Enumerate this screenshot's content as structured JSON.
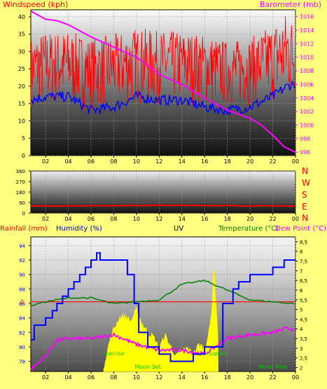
{
  "header": {
    "windspeed_label": "Windspeed (kph)",
    "barometer_label": "Barometer (mb)"
  },
  "panel_labels": {
    "rainfall": "Rainfall (mm)",
    "humidity": "Humidity (%)",
    "uv": "UV",
    "temperature": "Temperature (°C)",
    "dewpoint": "Dew Point (°C)"
  },
  "compass_labels": [
    "N",
    "W",
    "S",
    "E",
    "N"
  ],
  "colors": {
    "background": "#ffff80",
    "wind_gust": "#ff0000",
    "wind_avg": "#0000ff",
    "barometer": "#ff00ff",
    "wind_direction": "#ff0000",
    "humidity": "#0000ff",
    "temperature": "#008000",
    "dewpoint": "#ff00ff",
    "uv": "#ffff00",
    "rainfall": "#ff0000",
    "sun_moon_text": "#00cc00"
  },
  "chart_data": [
    {
      "type": "line",
      "x_tick_labels": [
        "02",
        "04",
        "06",
        "08",
        "10",
        "12",
        "14",
        "16",
        "18",
        "20",
        "22",
        "00"
      ],
      "y_left_ticks": [
        "0",
        "5",
        "10",
        "15",
        "20",
        "25",
        "30",
        "35",
        "40"
      ],
      "y_right_ticks": [
        "996",
        "998",
        "1000",
        "1002",
        "1004",
        "1006",
        "1008",
        "1010",
        "1012",
        "1014",
        "1016"
      ],
      "ylim_left": [
        0,
        42
      ],
      "ylim_right": [
        995.5,
        1017
      ],
      "x_range_hours": [
        0.7,
        24
      ],
      "series": [
        {
          "axis": "left",
          "style": "dense-noisy",
          "x": [
            0.7,
            2,
            4,
            6,
            8,
            10,
            12,
            14,
            16,
            18,
            20,
            22,
            23.3,
            24
          ],
          "low": [
            14,
            14,
            14,
            13,
            14,
            14,
            15,
            15,
            14,
            14,
            14,
            15,
            15,
            16
          ],
          "high": [
            34,
            36,
            36,
            34,
            35,
            37,
            36,
            36,
            35,
            33,
            34,
            38,
            42,
            38
          ]
        },
        {
          "axis": "left",
          "style": "noisy",
          "x": [
            0.7,
            2,
            4,
            6,
            8,
            10,
            12,
            14,
            16,
            18,
            20,
            22,
            23.3,
            24
          ],
          "values": [
            16,
            17,
            17,
            13,
            14,
            17,
            16,
            16,
            14,
            13,
            14,
            17,
            20,
            21
          ]
        },
        {
          "axis": "right",
          "x": [
            0.7,
            2,
            3,
            4,
            6,
            8,
            10,
            12,
            14,
            16,
            18,
            20,
            21,
            22,
            23,
            24
          ],
          "values": [
            1016.8,
            1015.6,
            1015.4,
            1014.8,
            1013,
            1011.5,
            1010,
            1007.5,
            1006,
            1004,
            1002.2,
            1001,
            1000,
            998.5,
            996.8,
            996
          ]
        }
      ]
    },
    {
      "type": "line",
      "x_tick_labels": [
        "02",
        "04",
        "06",
        "08",
        "10",
        "12",
        "14",
        "16",
        "18",
        "20",
        "22",
        "00"
      ],
      "y_ticks": [
        "0",
        "90",
        "180",
        "270",
        "360"
      ],
      "ylim": [
        0,
        360
      ],
      "series": [
        {
          "style": "noisy",
          "x": [
            0.7,
            4,
            8,
            12,
            16,
            20,
            24
          ],
          "values": [
            60,
            62,
            64,
            66,
            65,
            62,
            60
          ]
        }
      ]
    },
    {
      "type": "line",
      "x_tick_labels": [
        "02",
        "04",
        "06",
        "08",
        "10",
        "12",
        "14",
        "16",
        "18",
        "20",
        "22",
        "00"
      ],
      "y_left_ticks": [
        "78",
        "80",
        "82",
        "84",
        "86",
        "88",
        "90",
        "92",
        "94"
      ],
      "y_right_ticks": [
        "2",
        "2,5",
        "3",
        "3,5",
        "4",
        "4,5",
        "5",
        "5,5",
        "6",
        "6,5",
        "7",
        "7,5",
        "8",
        "8,5"
      ],
      "rain_tick_label": "0",
      "ylim_left": [
        76.6,
        95.2
      ],
      "ylim_right": [
        1.8,
        8.75
      ],
      "rainfall_value": 0,
      "annotations": [
        {
          "text": "Sunrise",
          "x": 8.0
        },
        {
          "text": "Moon Set",
          "x": 11.0
        },
        {
          "text": "SunSet",
          "x": 17.2
        },
        {
          "text": "Moon Rise",
          "x": 22.0
        }
      ],
      "series": [
        {
          "axis": "left",
          "style": "step",
          "x": [
            0.7,
            1.0,
            2.0,
            2.6,
            3.0,
            3.5,
            4.0,
            4.5,
            5.0,
            5.5,
            6.0,
            6.5,
            6.8,
            8.5,
            9.2,
            9.8,
            10.2,
            11.0,
            12.0,
            13.0,
            14.0,
            15.0,
            16.0,
            17.0,
            17.6,
            18.5,
            19.0,
            20.0,
            21.0,
            22.0,
            23.0,
            24.0
          ],
          "values": [
            81,
            83,
            84,
            85,
            86,
            87,
            88,
            89,
            90,
            91,
            92,
            93,
            92,
            92,
            90,
            86,
            82,
            80,
            79,
            78,
            78,
            79,
            80,
            80,
            86,
            88,
            89,
            90,
            90,
            91,
            92,
            92
          ]
        },
        {
          "axis": "right",
          "x": [
            0.7,
            2,
            4,
            6,
            8,
            10,
            12,
            14,
            16,
            18,
            20,
            22,
            24
          ],
          "values": [
            5.2,
            5.4,
            5.6,
            5.6,
            5.3,
            5.4,
            5.5,
            6.3,
            6.5,
            6.0,
            5.5,
            5.4,
            5.3
          ]
        },
        {
          "axis": "right",
          "style": "noisy",
          "x": [
            0.7,
            2,
            3,
            4,
            6,
            8,
            10,
            12,
            14,
            16,
            18,
            20,
            22,
            23,
            24
          ],
          "values": [
            1.9,
            2.6,
            3.4,
            3.5,
            3.5,
            3.7,
            3.2,
            2.9,
            2.9,
            2.7,
            3.5,
            3.7,
            3.8,
            4.0,
            4.0
          ]
        },
        {
          "axis": "right",
          "style": "area",
          "x": [
            7.1,
            7.6,
            8.0,
            8.5,
            9.0,
            9.5,
            10.0,
            10.5,
            11.0,
            11.5,
            12.0,
            12.5,
            13.0,
            13.5,
            14.0,
            14.5,
            15.0,
            15.5,
            16.0,
            16.4,
            16.6,
            16.8,
            17.0,
            17.2
          ],
          "values": [
            2.0,
            3.3,
            4.0,
            4.6,
            4.7,
            4.4,
            5.0,
            4.3,
            3.8,
            3.6,
            3.0,
            3.7,
            3.1,
            2.6,
            2.9,
            3.0,
            2.7,
            3.2,
            3.0,
            3.9,
            4.8,
            7.4,
            5.5,
            3.4
          ]
        }
      ]
    }
  ]
}
